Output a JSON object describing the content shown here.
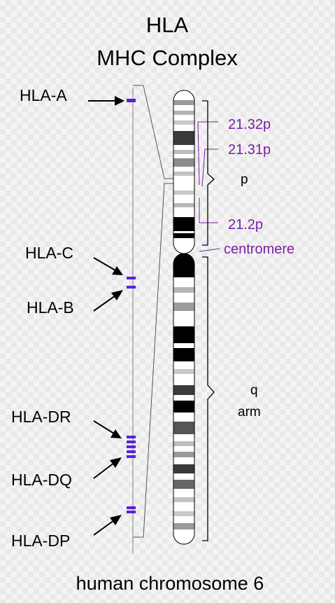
{
  "title": {
    "line1": "HLA",
    "line2": "MHC Complex"
  },
  "genes": {
    "hla_a": "HLA-A",
    "hla_c": "HLA-C",
    "hla_b": "HLA-B",
    "hla_dr": "HLA-DR",
    "hla_dq": "HLA-DQ",
    "hla_dp": "HLA-DP"
  },
  "bands": {
    "b21_32p": "21.32p",
    "b21_31p": "21.31p",
    "b21_2p": "21.2p",
    "centromere": "centromere"
  },
  "arms": {
    "p": "p",
    "q": "q",
    "q_suffix": "arm"
  },
  "caption": "human chromosome 6",
  "colors": {
    "accent_purple": "#7b1fa2",
    "marker_blue": "#5a1fe0",
    "line_gray": "#9a9a9a",
    "ink": "#000000"
  },
  "icons": {
    "arrow": "arrow-icon",
    "brace": "brace-icon",
    "marker": "gene-marker-icon"
  }
}
